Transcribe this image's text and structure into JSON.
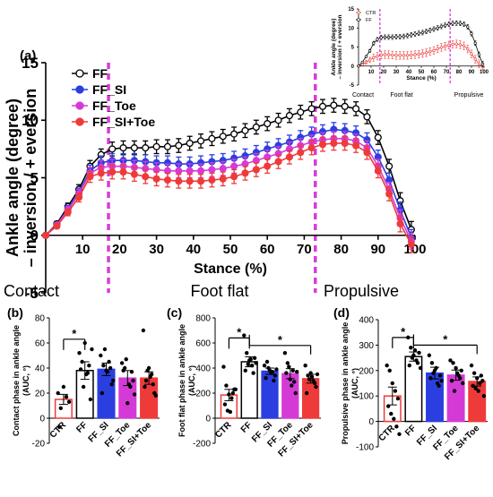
{
  "figure": {
    "panel_labels": [
      "(a)",
      "(b)",
      "(c)",
      "(d)"
    ],
    "star": "*"
  },
  "chart_data": [
    {
      "id": "a",
      "type": "line",
      "title": "",
      "xlabel": "Stance (%)",
      "ylabel_lines": [
        "Ankle angle (degree)",
        "– inversion / + eversion"
      ],
      "xlim": [
        0,
        100
      ],
      "ylim": [
        -5,
        15
      ],
      "xticks": [
        10,
        20,
        30,
        40,
        50,
        60,
        70,
        80,
        90,
        100
      ],
      "yticks": [
        -5,
        0,
        5,
        10,
        15
      ],
      "phase_lines": [
        17,
        73
      ],
      "phases": [
        "Contact",
        "Foot flat",
        "Propulsive"
      ],
      "legend_position": "top-left",
      "x": [
        0,
        3,
        6,
        9,
        12,
        15,
        18,
        21,
        24,
        27,
        30,
        33,
        36,
        39,
        42,
        45,
        48,
        51,
        54,
        57,
        60,
        63,
        66,
        69,
        72,
        75,
        78,
        81,
        84,
        87,
        90,
        93,
        96,
        99
      ],
      "series": [
        {
          "name": "FF",
          "color": "#000000",
          "marker": "open-circle",
          "values": [
            0,
            1.0,
            2.5,
            4.0,
            6.0,
            7.0,
            7.5,
            7.6,
            7.6,
            7.6,
            7.7,
            7.7,
            7.8,
            8.0,
            8.2,
            8.4,
            8.6,
            8.8,
            9.1,
            9.4,
            9.7,
            10.0,
            10.4,
            10.7,
            11.0,
            11.2,
            11.3,
            11.2,
            11.0,
            10.3,
            8.5,
            6.0,
            3.0,
            0.5
          ],
          "errors": [
            0,
            0.2,
            0.3,
            0.4,
            0.5,
            0.5,
            0.6,
            0.6,
            0.6,
            0.6,
            0.6,
            0.6,
            0.6,
            0.6,
            0.6,
            0.6,
            0.6,
            0.6,
            0.6,
            0.6,
            0.6,
            0.6,
            0.6,
            0.6,
            0.6,
            0.6,
            0.6,
            0.6,
            0.6,
            0.6,
            0.6,
            0.6,
            0.7,
            0.7
          ]
        },
        {
          "name": "FF_SI",
          "color": "#2b3fe0",
          "marker": "filled-circle",
          "values": [
            0,
            0.9,
            2.3,
            3.7,
            5.6,
            6.3,
            6.5,
            6.5,
            6.5,
            6.4,
            6.3,
            6.3,
            6.2,
            6.2,
            6.3,
            6.4,
            6.5,
            6.7,
            6.9,
            7.2,
            7.5,
            7.8,
            8.1,
            8.5,
            8.8,
            9.0,
            9.2,
            9.1,
            8.9,
            8.3,
            6.8,
            4.8,
            2.2,
            -0.2
          ],
          "errors": [
            0,
            0.2,
            0.3,
            0.4,
            0.5,
            0.6,
            0.6,
            0.6,
            0.6,
            0.6,
            0.6,
            0.6,
            0.6,
            0.6,
            0.6,
            0.6,
            0.6,
            0.6,
            0.6,
            0.6,
            0.6,
            0.6,
            0.6,
            0.6,
            0.6,
            0.6,
            0.6,
            0.6,
            0.6,
            0.6,
            0.6,
            0.6,
            0.7,
            0.7
          ]
        },
        {
          "name": "FF_Toe",
          "color": "#d63ad6",
          "marker": "filled-circle",
          "values": [
            0,
            0.9,
            2.2,
            3.6,
            5.4,
            5.9,
            6.0,
            6.0,
            5.9,
            5.8,
            5.7,
            5.6,
            5.6,
            5.6,
            5.6,
            5.7,
            5.8,
            6.0,
            6.2,
            6.5,
            6.8,
            7.1,
            7.5,
            7.8,
            8.1,
            8.3,
            8.4,
            8.4,
            8.2,
            7.6,
            6.0,
            4.0,
            1.5,
            -0.5
          ],
          "errors": [
            0,
            0.2,
            0.3,
            0.4,
            0.5,
            0.6,
            0.6,
            0.6,
            0.6,
            0.6,
            0.6,
            0.6,
            0.6,
            0.6,
            0.6,
            0.6,
            0.6,
            0.6,
            0.6,
            0.6,
            0.6,
            0.6,
            0.6,
            0.6,
            0.6,
            0.6,
            0.6,
            0.6,
            0.6,
            0.6,
            0.6,
            0.6,
            0.7,
            0.7
          ]
        },
        {
          "name": "FF_SI+Toe",
          "color": "#ef3a3a",
          "marker": "filled-circle",
          "values": [
            0,
            0.8,
            2.0,
            3.3,
            5.1,
            5.4,
            5.5,
            5.5,
            5.3,
            5.1,
            4.9,
            4.8,
            4.7,
            4.7,
            4.7,
            4.8,
            4.9,
            5.1,
            5.4,
            5.7,
            6.0,
            6.4,
            6.8,
            7.2,
            7.6,
            7.9,
            8.0,
            8.0,
            7.8,
            7.2,
            5.6,
            3.6,
            1.0,
            -0.8
          ],
          "errors": [
            0,
            0.2,
            0.3,
            0.4,
            0.5,
            0.6,
            0.6,
            0.6,
            0.6,
            0.6,
            0.6,
            0.6,
            0.6,
            0.6,
            0.6,
            0.6,
            0.6,
            0.6,
            0.6,
            0.6,
            0.6,
            0.6,
            0.6,
            0.6,
            0.6,
            0.6,
            0.6,
            0.6,
            0.6,
            0.6,
            0.6,
            0.6,
            0.7,
            0.7
          ]
        }
      ]
    },
    {
      "id": "a-inset",
      "type": "line",
      "xlabel": "Stance (%)",
      "ylabel_lines": [
        "Ankle angle (degree)",
        "– inversion / + eversion"
      ],
      "xlim": [
        0,
        100
      ],
      "ylim": [
        -5,
        15
      ],
      "xticks": [
        10,
        20,
        30,
        40,
        50,
        60,
        70,
        80,
        90,
        100
      ],
      "yticks": [
        -5,
        0,
        5,
        10,
        15
      ],
      "phase_lines": [
        17,
        73
      ],
      "phases": [
        "Contact",
        "Foot flat",
        "Propulsive"
      ],
      "legend_position": "top-left",
      "x": [
        0,
        3,
        6,
        9,
        12,
        15,
        18,
        21,
        24,
        27,
        30,
        33,
        36,
        39,
        42,
        45,
        48,
        51,
        54,
        57,
        60,
        63,
        66,
        69,
        72,
        75,
        78,
        81,
        84,
        87,
        90,
        93,
        96,
        99
      ],
      "series": [
        {
          "name": "CTR",
          "color": "#ef3a3a",
          "marker": "open-circle",
          "values": [
            0,
            0.4,
            1.0,
            1.6,
            2.2,
            2.6,
            2.9,
            3.0,
            3.0,
            2.9,
            2.8,
            2.8,
            2.8,
            2.8,
            2.9,
            3.0,
            3.1,
            3.3,
            3.5,
            3.8,
            4.1,
            4.5,
            4.9,
            5.2,
            5.5,
            5.7,
            5.8,
            5.6,
            5.3,
            4.5,
            3.2,
            1.8,
            0.6,
            -0.2
          ],
          "errors": [
            0,
            0.3,
            0.5,
            0.7,
            0.9,
            1.0,
            1.0,
            1.0,
            1.0,
            1.0,
            1.0,
            1.0,
            1.0,
            1.0,
            1.0,
            1.0,
            1.0,
            1.0,
            1.0,
            1.0,
            1.0,
            1.0,
            1.0,
            1.0,
            1.0,
            1.0,
            1.0,
            1.0,
            1.0,
            1.0,
            1.0,
            1.0,
            1.0,
            1.0
          ]
        },
        {
          "name": "FF",
          "color": "#000000",
          "marker": "open-circle",
          "values": [
            0,
            1.0,
            2.5,
            4.0,
            6.0,
            7.0,
            7.5,
            7.6,
            7.6,
            7.6,
            7.7,
            7.7,
            7.8,
            8.0,
            8.2,
            8.4,
            8.6,
            8.8,
            9.1,
            9.4,
            9.7,
            10.0,
            10.4,
            10.7,
            11.0,
            11.2,
            11.3,
            11.2,
            11.0,
            10.3,
            8.5,
            6.0,
            3.0,
            0.5
          ],
          "errors": [
            0,
            0.2,
            0.3,
            0.4,
            0.5,
            0.5,
            0.6,
            0.6,
            0.6,
            0.6,
            0.6,
            0.6,
            0.6,
            0.6,
            0.6,
            0.6,
            0.6,
            0.6,
            0.6,
            0.6,
            0.6,
            0.6,
            0.6,
            0.6,
            0.6,
            0.6,
            0.6,
            0.6,
            0.6,
            0.6,
            0.6,
            0.6,
            0.7,
            0.7
          ]
        }
      ]
    },
    {
      "id": "b",
      "type": "bar",
      "ylabel_lines": [
        "Contact phase in ankle angle",
        "(AUC, °)"
      ],
      "categories": [
        "CTR",
        "FF",
        "FF_SI",
        "FF_Toe",
        "FF_SI+Toe"
      ],
      "values": [
        15,
        38,
        39,
        32,
        32
      ],
      "errors": [
        4,
        7,
        5,
        6,
        5
      ],
      "colors": [
        "#ef3a3a",
        "#000000",
        "#2b3fe0",
        "#d63ad6",
        "#ef3a3a"
      ],
      "fills": [
        "#ffffff",
        "#ffffff",
        "#2b3fe0",
        "#d63ad6",
        "#ef3a3a"
      ],
      "points": [
        [
          20,
          8,
          25,
          17,
          13,
          -7
        ],
        [
          52,
          45,
          60,
          36,
          15,
          39,
          25,
          35,
          42,
          55
        ],
        [
          50,
          42,
          38,
          45,
          27,
          20,
          55,
          37,
          40,
          30
        ],
        [
          44,
          40,
          12,
          25,
          30,
          38,
          47,
          27,
          37,
          19
        ],
        [
          70,
          30,
          40,
          35,
          20,
          25,
          38,
          33,
          27,
          18
        ]
      ],
      "ylim": [
        -20,
        80
      ],
      "yticks": [
        -20,
        0,
        20,
        40,
        60,
        80
      ],
      "significance": [
        {
          "from": 0,
          "to": 1,
          "y": 63
        }
      ]
    },
    {
      "id": "c",
      "type": "bar",
      "ylabel_lines": [
        "Foot flat phase in ankle angle",
        "(AUC, °)"
      ],
      "categories": [
        "CTR",
        "FF",
        "FF_SI",
        "FF_Toe",
        "FF_SI+Toe"
      ],
      "values": [
        185,
        450,
        375,
        355,
        315
      ],
      "errors": [
        45,
        40,
        25,
        40,
        35
      ],
      "colors": [
        "#ef3a3a",
        "#000000",
        "#2b3fe0",
        "#d63ad6",
        "#ef3a3a"
      ],
      "fills": [
        "#ffffff",
        "#ffffff",
        "#2b3fe0",
        "#d63ad6",
        "#ef3a3a"
      ],
      "points": [
        [
          410,
          260,
          190,
          160,
          230,
          110,
          60,
          50,
          200,
          230
        ],
        [
          660,
          520,
          460,
          420,
          480,
          380,
          430,
          470,
          360,
          440
        ],
        [
          420,
          450,
          380,
          370,
          340,
          320,
          400,
          360,
          300,
          390
        ],
        [
          520,
          440,
          310,
          380,
          200,
          360,
          410,
          260,
          290,
          370
        ],
        [
          420,
          340,
          360,
          300,
          250,
          200,
          310,
          330,
          280,
          350
        ]
      ],
      "ylim": [
        -200,
        800
      ],
      "yticks": [
        -200,
        0,
        200,
        400,
        600,
        800
      ],
      "significance": [
        {
          "from": 0,
          "to": 1,
          "y": 640
        },
        {
          "from": 1,
          "to": 4,
          "y": 580
        }
      ]
    },
    {
      "id": "d",
      "type": "bar",
      "ylabel_lines": [
        "Propulsive phase in ankle angle",
        "(AUC, °)"
      ],
      "categories": [
        "CTR",
        "FF",
        "FF_SI",
        "FF_Toe",
        "FF_SI+Toe"
      ],
      "values": [
        100,
        255,
        190,
        182,
        157
      ],
      "errors": [
        35,
        18,
        23,
        20,
        18
      ],
      "colors": [
        "#ef3a3a",
        "#000000",
        "#2b3fe0",
        "#d63ad6",
        "#ef3a3a"
      ],
      "fills": [
        "#ffffff",
        "#ffffff",
        "#2b3fe0",
        "#d63ad6",
        "#ef3a3a"
      ],
      "points": [
        [
          220,
          200,
          150,
          120,
          90,
          60,
          30,
          10,
          -20,
          -50
        ],
        [
          330,
          290,
          260,
          240,
          270,
          220,
          250,
          280,
          230,
          210
        ],
        [
          260,
          230,
          200,
          150,
          180,
          170,
          190,
          210,
          140,
          160
        ],
        [
          240,
          230,
          210,
          180,
          200,
          160,
          120,
          190,
          170,
          150
        ],
        [
          220,
          190,
          170,
          150,
          160,
          140,
          130,
          120,
          180,
          100
        ]
      ],
      "ylim": [
        -100,
        400
      ],
      "yticks": [
        -100,
        0,
        100,
        200,
        300,
        400
      ],
      "significance": [
        {
          "from": 0,
          "to": 1,
          "y": 330
        },
        {
          "from": 1,
          "to": 4,
          "y": 300
        }
      ]
    }
  ]
}
